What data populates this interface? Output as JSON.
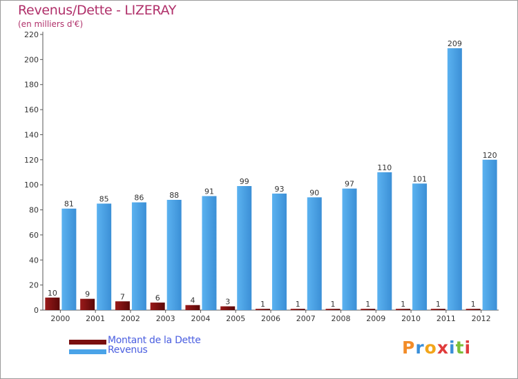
{
  "title": "Revenus/Dette - LIZERAY",
  "subtitle": "(en milliers d'€)",
  "logo": {
    "text": "Proxiti",
    "letter_colors": [
      "#f28c28",
      "#3a8fd9",
      "#f2a51a",
      "#e03b3b",
      "#3a8fd9",
      "#7bbf3a",
      "#e03b3b"
    ]
  },
  "colors": {
    "dette": "#7a0f0f",
    "revenus": "#4aa3e8",
    "title": "#b0306a",
    "legend_text": "#4a5ee0"
  },
  "chart_data": {
    "type": "bar",
    "title": "Revenus/Dette - LIZERAY",
    "subtitle": "(en milliers d'€)",
    "categories": [
      "2000",
      "2001",
      "2002",
      "2003",
      "2004",
      "2005",
      "2006",
      "2007",
      "2008",
      "2009",
      "2010",
      "2011",
      "2012"
    ],
    "series": [
      {
        "name": "Montant de la Dette",
        "values": [
          10,
          9,
          7,
          6,
          4,
          3,
          1,
          1,
          1,
          1,
          1,
          1,
          1
        ]
      },
      {
        "name": "Revenus",
        "values": [
          81,
          85,
          86,
          88,
          91,
          99,
          93,
          90,
          97,
          110,
          101,
          209,
          120
        ]
      }
    ],
    "ylim": [
      0,
      220
    ],
    "yticks": [
      0,
      20,
      40,
      60,
      80,
      100,
      120,
      140,
      160,
      180,
      200,
      220
    ],
    "grid": false,
    "legend_position": "bottom-left",
    "data_labels": true
  }
}
